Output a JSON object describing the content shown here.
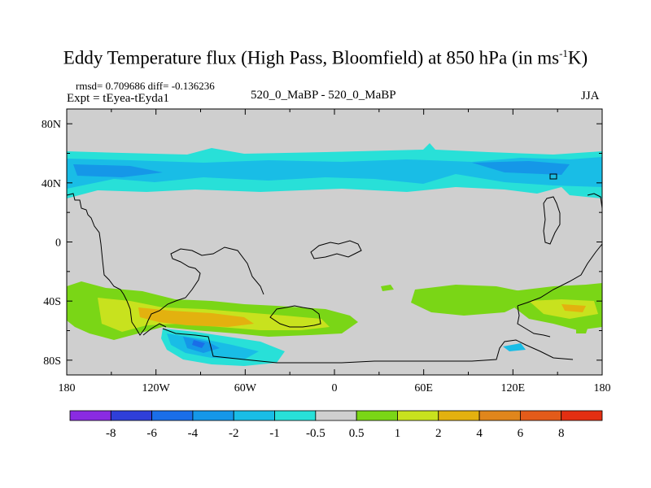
{
  "title": {
    "main": "Eddy Temperature flux (High Pass, Bloomfield) at 850 hPa (in ms",
    "sup": "-1",
    "tail": "K)"
  },
  "stats": "rmsd= 0.709686 diff= -0.136236",
  "experiment": "Expt = tEyea-tEyda1",
  "case_label": "520_0_MaBP - 520_0_MaBP",
  "season": "JJA",
  "chart_data": {
    "type": "heatmap",
    "title": "Eddy Temperature flux (High Pass, Bloomfield) at 850 hPa (in ms-1K)",
    "field": "Eddy Temperature flux difference",
    "units": "ms-1K",
    "x_axis": {
      "range": [
        -180,
        180
      ],
      "ticks": [
        -180,
        -120,
        -60,
        0,
        60,
        120,
        180
      ],
      "tick_labels": [
        "180",
        "120W",
        "60W",
        "0",
        "60E",
        "120E",
        "180"
      ]
    },
    "y_axis": {
      "range": [
        -90,
        90
      ],
      "ticks": [
        80,
        40,
        0,
        -40,
        -80
      ],
      "tick_labels": [
        "80N",
        "40N",
        "0",
        "40S",
        "80S"
      ]
    },
    "colorbar": {
      "levels": [
        "-8",
        "-6",
        "-4",
        "-2",
        "-1",
        "-0.5",
        "0.5",
        "1",
        "2",
        "4",
        "6",
        "8"
      ],
      "colors": [
        "#8a2be2",
        "#2f3fd9",
        "#1a6ee8",
        "#1597e8",
        "#19bde6",
        "#28e0d8",
        "#cfcfcf",
        "#7ad616",
        "#c8e21e",
        "#e3b10f",
        "#e0861c",
        "#e35b1a",
        "#e32f12"
      ]
    },
    "regions": [
      {
        "desc": "northern midlatitude band",
        "lat": [
          28,
          62
        ],
        "lon": [
          -180,
          180
        ],
        "value_range": [
          -2,
          -0.5
        ]
      },
      {
        "desc": "core of northern band",
        "lat": [
          38,
          52
        ],
        "lon": [
          -180,
          180
        ],
        "value_range": [
          -2,
          -1
        ]
      },
      {
        "desc": "southern positive band",
        "lat": [
          -65,
          -30
        ],
        "lon": [
          -180,
          30
        ],
        "value_range": [
          1,
          4
        ]
      },
      {
        "desc": "southern Atlantic maximum",
        "lat": [
          -58,
          -48
        ],
        "lon": [
          -100,
          -55
        ],
        "value_range": [
          2,
          4
        ]
      },
      {
        "desc": "Antarctic negative region",
        "lat": [
          -85,
          -60
        ],
        "lon": [
          -115,
          -30
        ],
        "value_range": [
          -4,
          -0.5
        ]
      },
      {
        "desc": "south Indian Ocean positive",
        "lat": [
          -50,
          -32
        ],
        "lon": [
          45,
          100
        ],
        "value_range": [
          0.5,
          1
        ]
      },
      {
        "desc": "south Pacific east positive",
        "lat": [
          -60,
          -35
        ],
        "lon": [
          120,
          180
        ],
        "value_range": [
          0.5,
          2
        ]
      }
    ]
  }
}
